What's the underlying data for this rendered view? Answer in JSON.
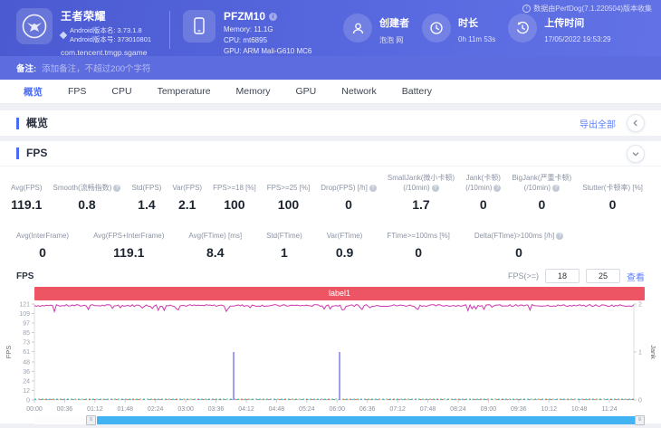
{
  "header": {
    "app": {
      "name": "王者荣耀",
      "version_name": "Android版本名: 3.73.1.8",
      "version_code": "Android版本号: 373010801",
      "package": "com.tencent.tmgp.sgame"
    },
    "device": {
      "model": "PFZM10",
      "memory": "Memory: 11.1G",
      "cpu": "CPU: mt6895",
      "gpu": "GPU: ARM Mali-G610 MC6"
    },
    "creator": {
      "label": "创建者",
      "value": "泡泡 网"
    },
    "duration": {
      "label": "时长",
      "value": "0h 11m 53s"
    },
    "upload": {
      "label": "上传时间",
      "value": "17/05/2022 19:53:29"
    },
    "collector_note": "数据由PerfDog(7.1.220504)版本收集"
  },
  "note_bar": {
    "label": "备注:",
    "placeholder": "添加备注，不超过200个字符"
  },
  "tabs": [
    "概览",
    "FPS",
    "CPU",
    "Temperature",
    "Memory",
    "GPU",
    "Network",
    "Battery"
  ],
  "active_tab": "概览",
  "overview": {
    "title": "概览",
    "export_all": "导出全部"
  },
  "fps_panel": {
    "title": "FPS",
    "chart_title": "FPS",
    "threshold": {
      "label": "FPS(>=)",
      "value1": "18",
      "value2": "25",
      "action": "查看"
    },
    "stats_row1": [
      {
        "label": "Avg(FPS)",
        "value": "119.1"
      },
      {
        "label": "Smooth(流畅指数)",
        "info": true,
        "value": "0.8"
      },
      {
        "label": "Std(FPS)",
        "value": "1.4"
      },
      {
        "label": "Var(FPS)",
        "value": "2.1"
      },
      {
        "label": "FPS>=18 [%]",
        "value": "100"
      },
      {
        "label": "FPS>=25 [%]",
        "value": "100"
      },
      {
        "label": "Drop(FPS) [/h]",
        "info": true,
        "value": "0"
      },
      {
        "label": "SmallJank(微小卡顿)",
        "sub": "(/10min)",
        "info": true,
        "value": "1.7"
      },
      {
        "label": "Jank(卡顿)",
        "sub": "(/10min)",
        "info": true,
        "value": "0"
      },
      {
        "label": "BigJank(严重卡顿)",
        "sub": "(/10min)",
        "info": true,
        "value": "0"
      },
      {
        "label": "Stutter(卡顿率) [%]",
        "value": "0"
      }
    ],
    "stats_row2": [
      {
        "label": "Avg(InterFrame)",
        "value": "0"
      },
      {
        "label": "Avg(FPS+InterFrame)",
        "value": "119.1"
      },
      {
        "label": "Avg(FTime) [ms]",
        "value": "8.4"
      },
      {
        "label": "Std(FTime)",
        "value": "1"
      },
      {
        "label": "Var(FTime)",
        "value": "0.9"
      },
      {
        "label": "FTime>=100ms [%]",
        "value": "0"
      },
      {
        "label": "Delta(FTime)>100ms [/h]",
        "info": true,
        "value": "0"
      }
    ]
  },
  "chart_data": {
    "type": "line",
    "banner_label": "label1",
    "duration_seconds": 713,
    "x_ticks": [
      "00:00",
      "00:36",
      "01:12",
      "01:48",
      "02:24",
      "03:00",
      "03:36",
      "04:12",
      "04:48",
      "05:24",
      "06:00",
      "06:36",
      "07:12",
      "07:48",
      "08:24",
      "09:00",
      "09:36",
      "10:12",
      "10:48",
      "11:24"
    ],
    "x_tick_interval_seconds": 36,
    "y_left": {
      "label": "FPS",
      "ticks": [
        0,
        12,
        24,
        36,
        48,
        61,
        73,
        85,
        97,
        109,
        121
      ],
      "max": 121
    },
    "y_right": {
      "label": "Jank",
      "ticks": [
        0,
        1,
        2
      ],
      "max": 2
    },
    "grid": false,
    "legend_position": "bottom",
    "series": [
      {
        "name": "FPS",
        "color": "#cc3aae",
        "axis": "left",
        "type": "noisy-line",
        "base": 119.1,
        "noise": 2.4,
        "dip_min": 112
      },
      {
        "name": "Smooth",
        "color": "#3dbd7d",
        "axis": "left",
        "type": "flat",
        "value": 0.8
      },
      {
        "name": "SmallJank",
        "color": "#8a8ff2",
        "axis": "right",
        "type": "spikes",
        "points": [
          {
            "t": 237,
            "v": 1
          },
          {
            "t": 363,
            "v": 1
          }
        ]
      },
      {
        "name": "Jank",
        "color": "#f08c3c",
        "axis": "right",
        "type": "flat",
        "value": 0
      },
      {
        "name": "BigJank",
        "color": "#e23b3b",
        "axis": "right",
        "type": "flat",
        "value": 0
      },
      {
        "name": "Stutter",
        "color": "#57a6f5",
        "axis": "left",
        "type": "flat",
        "value": 0
      },
      {
        "name": "InterFrame",
        "color": "#2ec8c8",
        "axis": "left",
        "type": "flat",
        "value": 0
      }
    ]
  }
}
